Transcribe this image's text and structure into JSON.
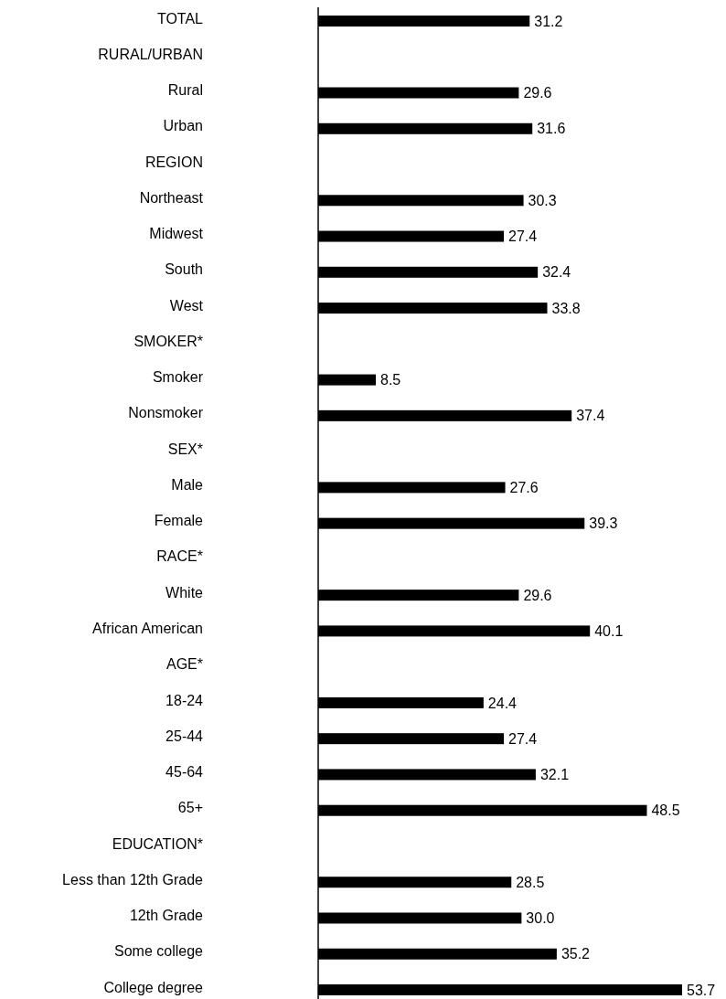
{
  "chart_data": {
    "type": "bar",
    "orientation": "horizontal",
    "color": "#000000",
    "categories": [
      "TOTAL",
      "RURAL/URBAN",
      "Rural",
      "Urban",
      "REGION",
      "Northeast",
      "Midwest",
      "South",
      "West",
      "SMOKER*",
      "Smoker",
      "Nonsmoker",
      "SEX*",
      "Male",
      "Female",
      "RACE*",
      "White",
      "African American",
      "AGE*",
      "18-24",
      "25-44",
      "45-64",
      "65+",
      "EDUCATION*",
      "Less than 12th Grade",
      "12th Grade",
      "Some college",
      "College degree"
    ],
    "values": [
      31.2,
      null,
      29.6,
      31.6,
      null,
      30.3,
      27.4,
      32.4,
      33.8,
      null,
      8.5,
      37.4,
      null,
      27.6,
      39.3,
      null,
      29.6,
      40.1,
      null,
      24.4,
      27.4,
      32.1,
      48.5,
      null,
      28.5,
      30.0,
      35.2,
      53.7
    ],
    "value_labels": [
      "31.2",
      null,
      "29.6",
      "31.6",
      null,
      "30.3",
      "27.4",
      "32.4",
      "33.8",
      null,
      "8.5",
      "37.4",
      null,
      "27.6",
      "39.3",
      null,
      "29.6",
      "40.1",
      null,
      "24.4",
      "27.4",
      "32.1",
      "48.5",
      null,
      "28.5",
      "30.0",
      "35.2",
      "53.7"
    ]
  }
}
